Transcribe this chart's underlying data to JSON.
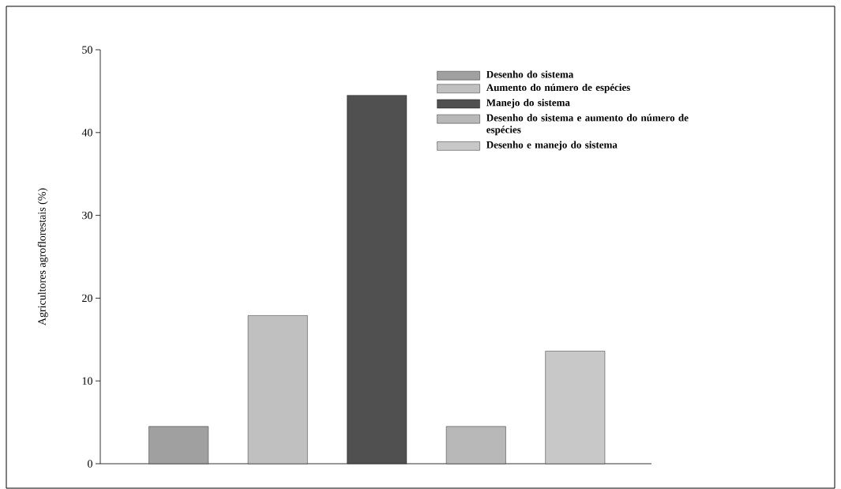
{
  "chart_data": {
    "type": "bar",
    "ylabel": "Agricultores  agroflorestais  (%)",
    "categories": [
      null,
      null,
      null,
      null,
      null
    ],
    "series": [
      {
        "name": "Desenho do sistema",
        "color": "#a0a0a0",
        "values": [
          4.5,
          null,
          null,
          null,
          null
        ]
      },
      {
        "name": "Aumento do número de espécies",
        "color": "#c0c0c0",
        "values": [
          null,
          17.9,
          null,
          null,
          null
        ]
      },
      {
        "name": "Manejo do sistema",
        "color": "#505050",
        "values": [
          null,
          null,
          44.5,
          null,
          null
        ]
      },
      {
        "name": "Desenho do sistema e  aumento do número de espécies",
        "color": "#b8b8b8",
        "values": [
          null,
          null,
          null,
          4.5,
          null
        ]
      },
      {
        "name": "Desenho e manejo do sistema",
        "color": "#c8c8c8",
        "values": [
          null,
          null,
          null,
          null,
          13.6
        ]
      }
    ],
    "ylim": [
      0,
      50
    ],
    "yticks": [
      0,
      10,
      20,
      30,
      40,
      50
    ],
    "grid": false,
    "legend": "top right"
  }
}
